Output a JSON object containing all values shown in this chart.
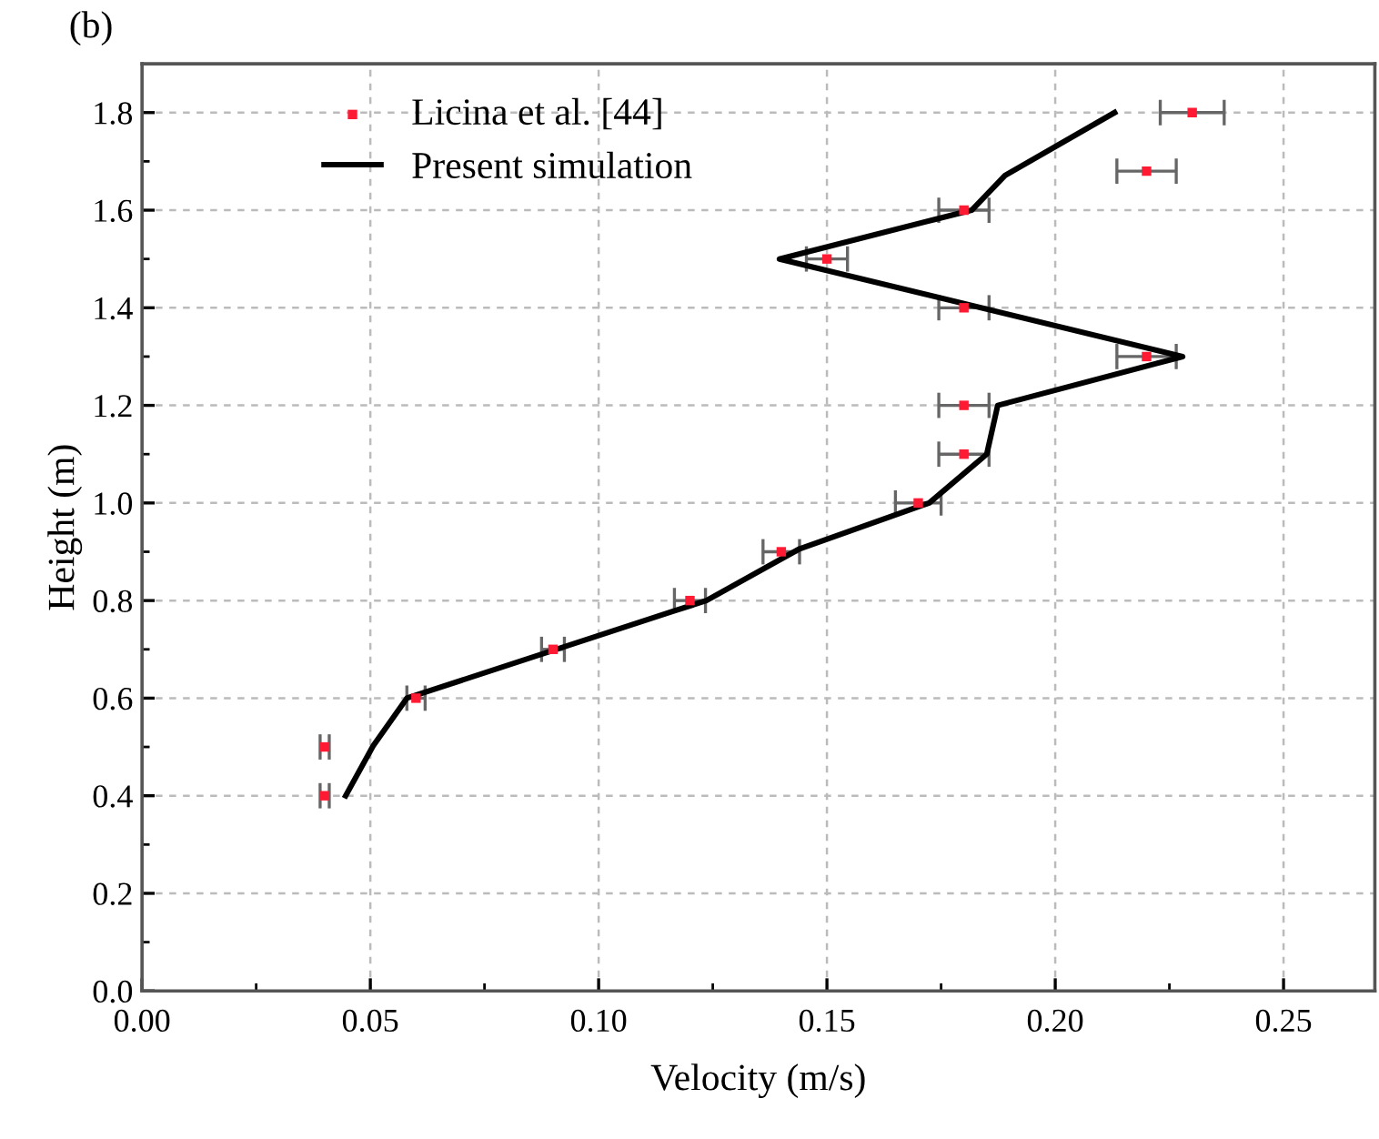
{
  "chart_data": {
    "type": "line",
    "xlabel": "Velocity (m/s)",
    "ylabel": "Height (m)",
    "annotations": [
      "(b)"
    ],
    "xlim": [
      0,
      0.27
    ],
    "xticks": [
      {
        "value": 0,
        "label": "0.00"
      },
      0.05,
      {
        "value": 0.1,
        "label": "0.10"
      },
      0.15,
      {
        "value": 0.2,
        "label": "0.20"
      },
      0.25
    ],
    "ylim": [
      0,
      1.9
    ],
    "yticks": [
      {
        "value": 0,
        "label": "0.0"
      },
      0.2,
      0.4,
      0.6,
      0.8,
      {
        "value": 1,
        "label": "1.0"
      },
      1.2,
      1.4,
      1.6,
      1.8
    ],
    "grid": true,
    "legend": "top left",
    "series": [
      {
        "name": "Licina et al. [44]",
        "type": "scatter",
        "color": "#ff1a33",
        "marker": "square",
        "x": [
          0.04,
          0.04,
          0.06,
          0.09,
          0.12,
          0.14,
          0.17,
          0.18,
          0.18,
          0.22,
          0.18,
          0.15,
          0.18,
          0.22,
          0.23
        ],
        "values": [
          0.4,
          0.5,
          0.6,
          0.7,
          0.8,
          0.9,
          1.0,
          1.1,
          1.2,
          1.3,
          1.4,
          1.5,
          1.6,
          1.68,
          1.8
        ],
        "xerrors": [
          0.001,
          0.001,
          0.002,
          0.0025,
          0.0034,
          0.004,
          0.005,
          0.0055,
          0.0055,
          0.0065,
          0.0055,
          0.0045,
          0.0055,
          0.0065,
          0.007
        ]
      },
      {
        "name": "Present simulation",
        "color": "#000000",
        "marker": "none",
        "line_style": "solid",
        "x": [
          0.0446,
          0.0506,
          0.058,
          0.1163,
          0.1236,
          0.144,
          0.1724,
          0.185,
          0.1874,
          0.2279,
          0.1396,
          0.174,
          0.1817,
          0.189,
          0.213
        ],
        "values": [
          0.4,
          0.502,
          0.6,
          0.778,
          0.8,
          0.906,
          1.0,
          1.1,
          1.2,
          1.3,
          1.5,
          1.582,
          1.6,
          1.671,
          1.8
        ]
      }
    ]
  }
}
